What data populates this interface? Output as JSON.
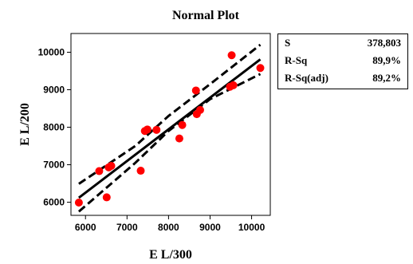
{
  "chart_data": {
    "type": "scatter",
    "title": "Normal Plot",
    "xlabel": "E L/300",
    "ylabel": "E L/200",
    "xlim": [
      5650,
      10450
    ],
    "ylim": [
      5650,
      10500
    ],
    "xticks": [
      6000,
      7000,
      8000,
      9000,
      10000
    ],
    "yticks": [
      6000,
      7000,
      8000,
      9000,
      10000
    ],
    "grid": false,
    "points": [
      {
        "x": 5840,
        "y": 5990
      },
      {
        "x": 6330,
        "y": 6830
      },
      {
        "x": 6510,
        "y": 6130
      },
      {
        "x": 6560,
        "y": 6930
      },
      {
        "x": 6620,
        "y": 6970
      },
      {
        "x": 7330,
        "y": 6840
      },
      {
        "x": 7430,
        "y": 7900
      },
      {
        "x": 7490,
        "y": 7940
      },
      {
        "x": 7710,
        "y": 7930
      },
      {
        "x": 8260,
        "y": 7700
      },
      {
        "x": 8330,
        "y": 8060
      },
      {
        "x": 8660,
        "y": 8980
      },
      {
        "x": 8680,
        "y": 8350
      },
      {
        "x": 8760,
        "y": 8460
      },
      {
        "x": 9480,
        "y": 9080
      },
      {
        "x": 9520,
        "y": 9920
      },
      {
        "x": 9560,
        "y": 9120
      },
      {
        "x": 10210,
        "y": 9580
      }
    ],
    "fit_line": [
      [
        5840,
        6120
      ],
      [
        10210,
        9810
      ]
    ],
    "ci_upper": [
      [
        5840,
        6490
      ],
      [
        7200,
        7500
      ],
      [
        8000,
        8300
      ],
      [
        9000,
        9150
      ],
      [
        10210,
        10200
      ]
    ],
    "ci_lower": [
      [
        5840,
        5750
      ],
      [
        7200,
        7050
      ],
      [
        8000,
        7900
      ],
      [
        9000,
        8750
      ],
      [
        10210,
        9420
      ]
    ],
    "point_color": "#ff0000",
    "line_color": "#000000"
  },
  "stats": [
    {
      "key": "S",
      "value": "378,803"
    },
    {
      "key": "R-Sq",
      "value": "89,9%"
    },
    {
      "key": "R-Sq(adj)",
      "value": "89,2%"
    }
  ]
}
